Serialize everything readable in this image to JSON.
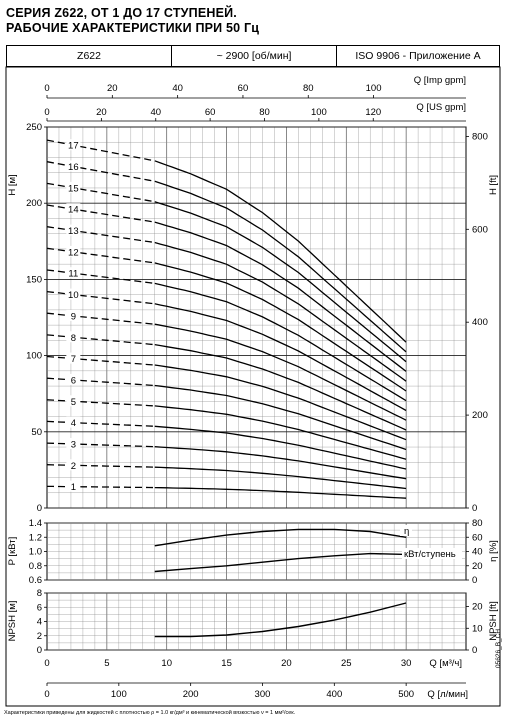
{
  "header": {
    "title_line1": "СЕРИЯ Z622, ОТ 1 ДО 17 СТУПЕНЕЙ.",
    "title_line2": "РАБОЧИЕ ХАРАКТЕРИСТИКИ ПРИ 50 Гц",
    "model": "Z622",
    "speed": "~ 2900 [об/мин]",
    "standard": "ISO 9906 - Приложение A"
  },
  "footnote": "Характеристики приведены для жидкостей с плотностью ρ = 1.0 кг/дм³ и кинематической вязкостью ν = 1 мм²/сек.",
  "doc_code": "05626_B_CH",
  "chart_data": [
    {
      "type": "line",
      "panel": "head",
      "ylabel": "H [м]",
      "ylabel_right": "H [ft]",
      "ylim": [
        0,
        250
      ],
      "yticks": [
        0,
        50,
        100,
        150,
        200,
        250
      ],
      "yticks_right": [
        0,
        200,
        400,
        600,
        800
      ],
      "xlim": [
        0,
        30
      ],
      "top_axis_imp": {
        "label": "Q [Imp gpm]",
        "ticks": [
          0,
          20,
          40,
          60,
          80,
          100
        ]
      },
      "top_axis_us": {
        "label": "Q [US gpm]",
        "ticks": [
          0,
          20,
          40,
          60,
          80,
          100,
          120
        ]
      },
      "x": [
        0,
        9,
        12,
        15,
        18,
        21,
        24,
        27,
        30
      ],
      "per_stage_head": [
        14.2,
        13.4,
        12.9,
        12.3,
        11.4,
        10.3,
        9.0,
        7.7,
        6.4
      ],
      "dashed_until_x": 9,
      "series": [
        {
          "name": "1"
        },
        {
          "name": "2"
        },
        {
          "name": "3"
        },
        {
          "name": "4"
        },
        {
          "name": "5"
        },
        {
          "name": "6"
        },
        {
          "name": "7"
        },
        {
          "name": "8"
        },
        {
          "name": "9"
        },
        {
          "name": "10"
        },
        {
          "name": "11"
        },
        {
          "name": "12"
        },
        {
          "name": "13"
        },
        {
          "name": "14"
        },
        {
          "name": "15"
        },
        {
          "name": "16"
        },
        {
          "name": "17"
        }
      ]
    },
    {
      "type": "line",
      "panel": "power_efficiency",
      "ylabel": "P [кВт]",
      "ylabel_right": "η [%]",
      "ylim": [
        0.6,
        1.4
      ],
      "yticks": [
        0.6,
        0.8,
        1.0,
        1.2,
        1.4
      ],
      "yticks_right": [
        0,
        20,
        40,
        60,
        80
      ],
      "series": [
        {
          "name": "η",
          "x": [
            9,
            12,
            15,
            18,
            21,
            24,
            27,
            30
          ],
          "values": [
            48,
            56,
            63,
            68,
            71,
            71,
            68,
            60
          ]
        },
        {
          "name": "кВт/ступень",
          "x": [
            9,
            12,
            15,
            18,
            21,
            24,
            27,
            30
          ],
          "values": [
            0.72,
            0.76,
            0.8,
            0.85,
            0.9,
            0.94,
            0.97,
            0.96
          ]
        }
      ]
    },
    {
      "type": "line",
      "panel": "npsh",
      "ylabel": "NPSH [м]",
      "ylabel_right": "NPSH [ft]",
      "xlabel": "Q [м³/ч]",
      "xlabel_bottom": "Q [л/мин]",
      "ylim": [
        0,
        8
      ],
      "yticks": [
        0,
        2,
        4,
        6,
        8
      ],
      "yticks_right": [
        0,
        10,
        20
      ],
      "xticks": [
        0,
        5,
        10,
        15,
        20,
        25,
        30
      ],
      "xticks_bottom": [
        0,
        100,
        200,
        300,
        400,
        500
      ],
      "series": [
        {
          "name": "NPSH",
          "x": [
            9,
            12,
            15,
            18,
            21,
            24,
            27,
            30
          ],
          "values": [
            1.9,
            1.9,
            2.1,
            2.6,
            3.3,
            4.2,
            5.3,
            6.6
          ]
        }
      ]
    }
  ]
}
